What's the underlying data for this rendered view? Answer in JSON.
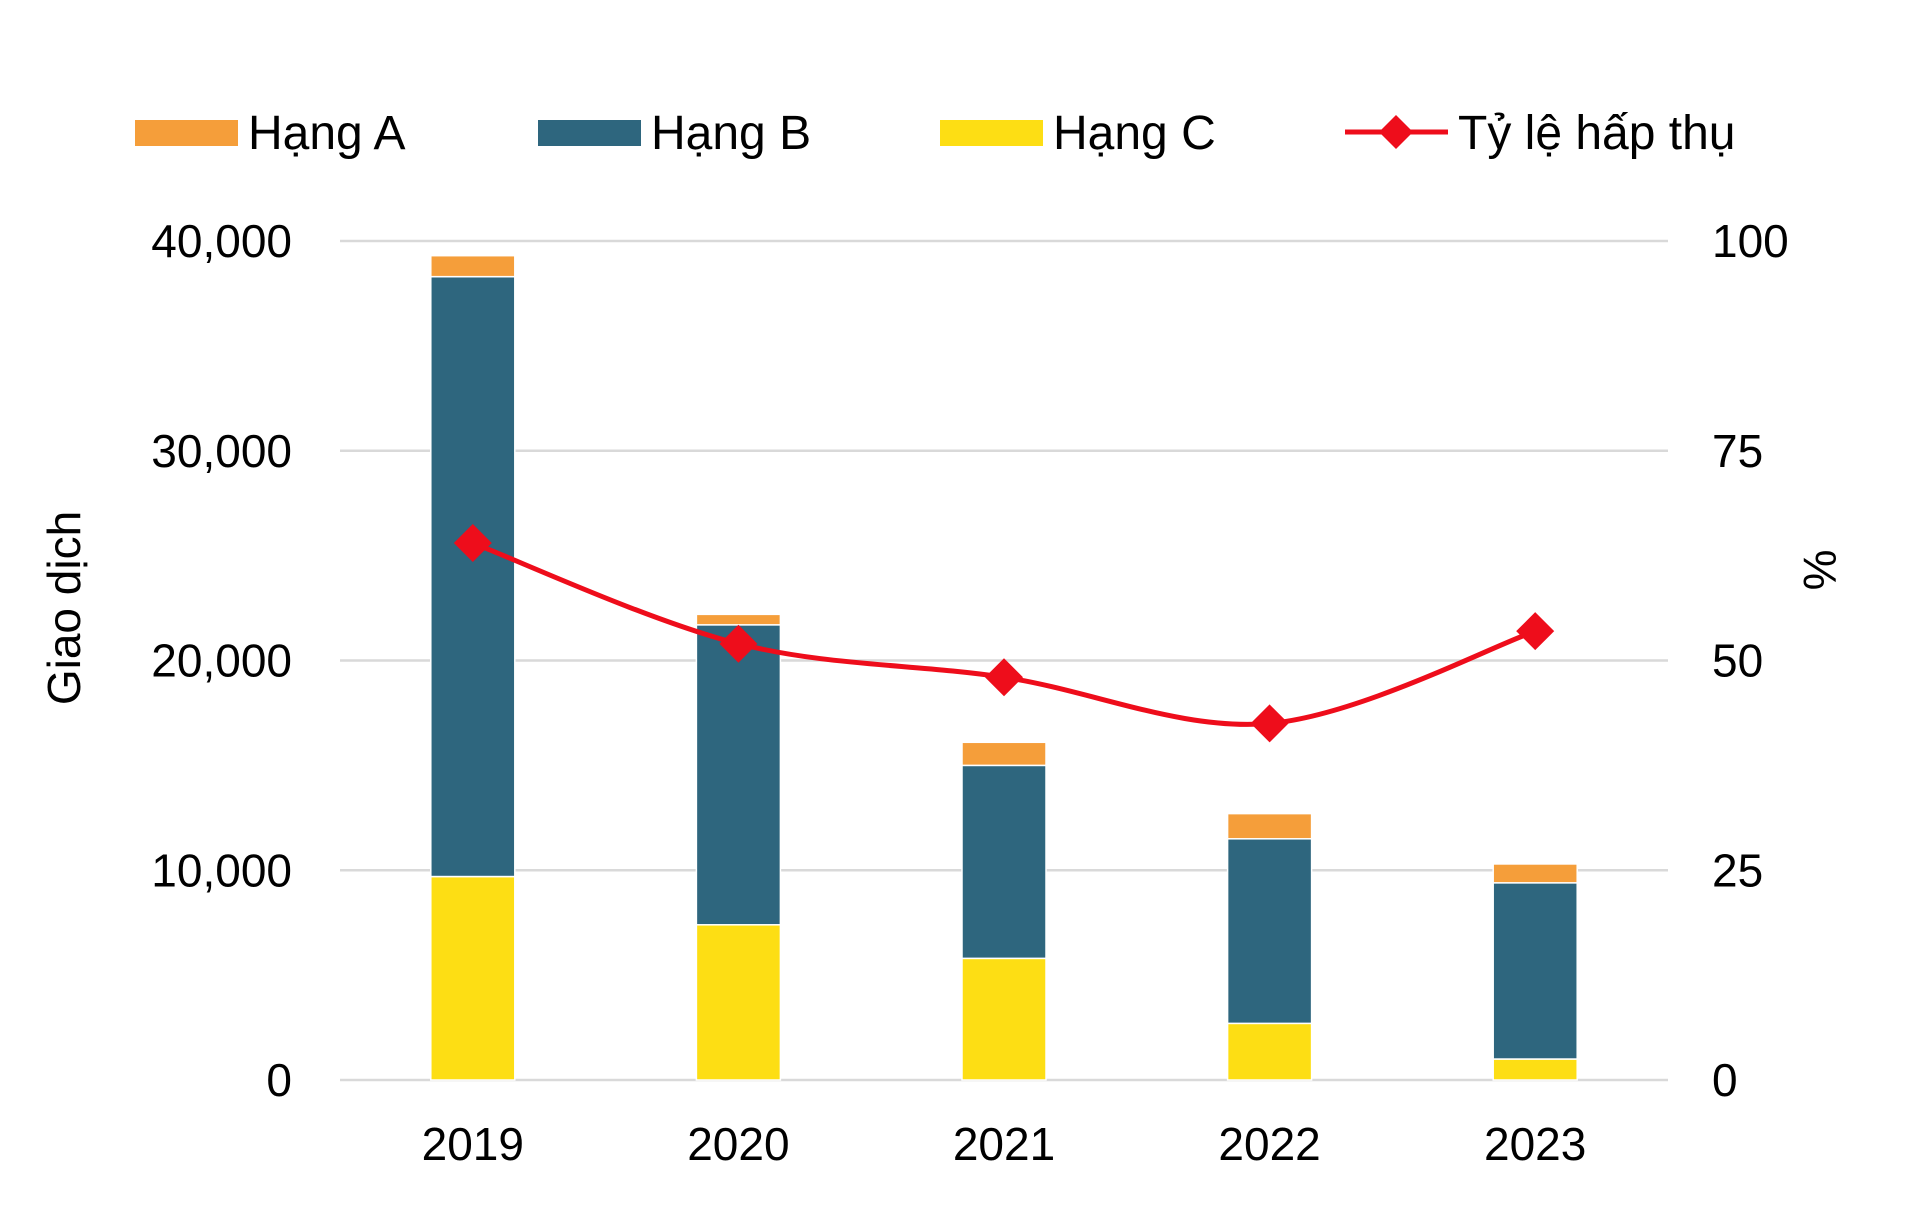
{
  "chart_data": {
    "type": "bar",
    "stacked": true,
    "categories": [
      "2019",
      "2020",
      "2021",
      "2022",
      "2023"
    ],
    "series": [
      {
        "name": "Hạng C",
        "type": "bar",
        "axis": "left",
        "color": "#FDDE14",
        "values": [
          9700,
          7400,
          5800,
          2700,
          1000
        ]
      },
      {
        "name": "Hạng B",
        "type": "bar",
        "axis": "left",
        "color": "#2E667E",
        "values": [
          28600,
          14300,
          9200,
          8800,
          8400
        ]
      },
      {
        "name": "Hạng A",
        "type": "bar",
        "axis": "left",
        "color": "#F59E3A",
        "values": [
          1000,
          500,
          1100,
          1200,
          900
        ]
      },
      {
        "name": "Tỷ lệ hấp thụ",
        "type": "line",
        "axis": "right",
        "color": "#EE0D1B",
        "marker": "diamond",
        "values": [
          64,
          52,
          48,
          42.5,
          53.5
        ]
      }
    ],
    "legend_order": [
      "Hạng A",
      "Hạng B",
      "Hạng C",
      "Tỷ lệ hấp thụ"
    ],
    "legend_position": "top",
    "ylabel": "Giao dịch",
    "ylim": [
      0,
      40000
    ],
    "yticks": [
      "0",
      "10,000",
      "20,000",
      "30,000",
      "40,000"
    ],
    "y2label": "%",
    "y2lim": [
      0,
      100
    ],
    "y2ticks": [
      "0",
      "25",
      "50",
      "75",
      "100"
    ],
    "grid": true
  }
}
